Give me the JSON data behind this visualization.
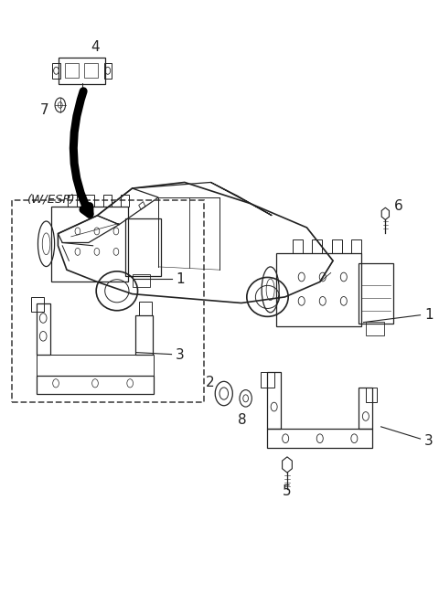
{
  "title": "",
  "background_color": "#ffffff",
  "border_color": "#000000",
  "text_color": "#000000",
  "fig_width": 4.8,
  "fig_height": 6.63,
  "dpi": 100,
  "line_color": "#222222",
  "dashed_color": "#555555",
  "car_color": "#111111",
  "parts_gray": "#888888",
  "lw_main": 1.2,
  "lw_part": 0.9
}
